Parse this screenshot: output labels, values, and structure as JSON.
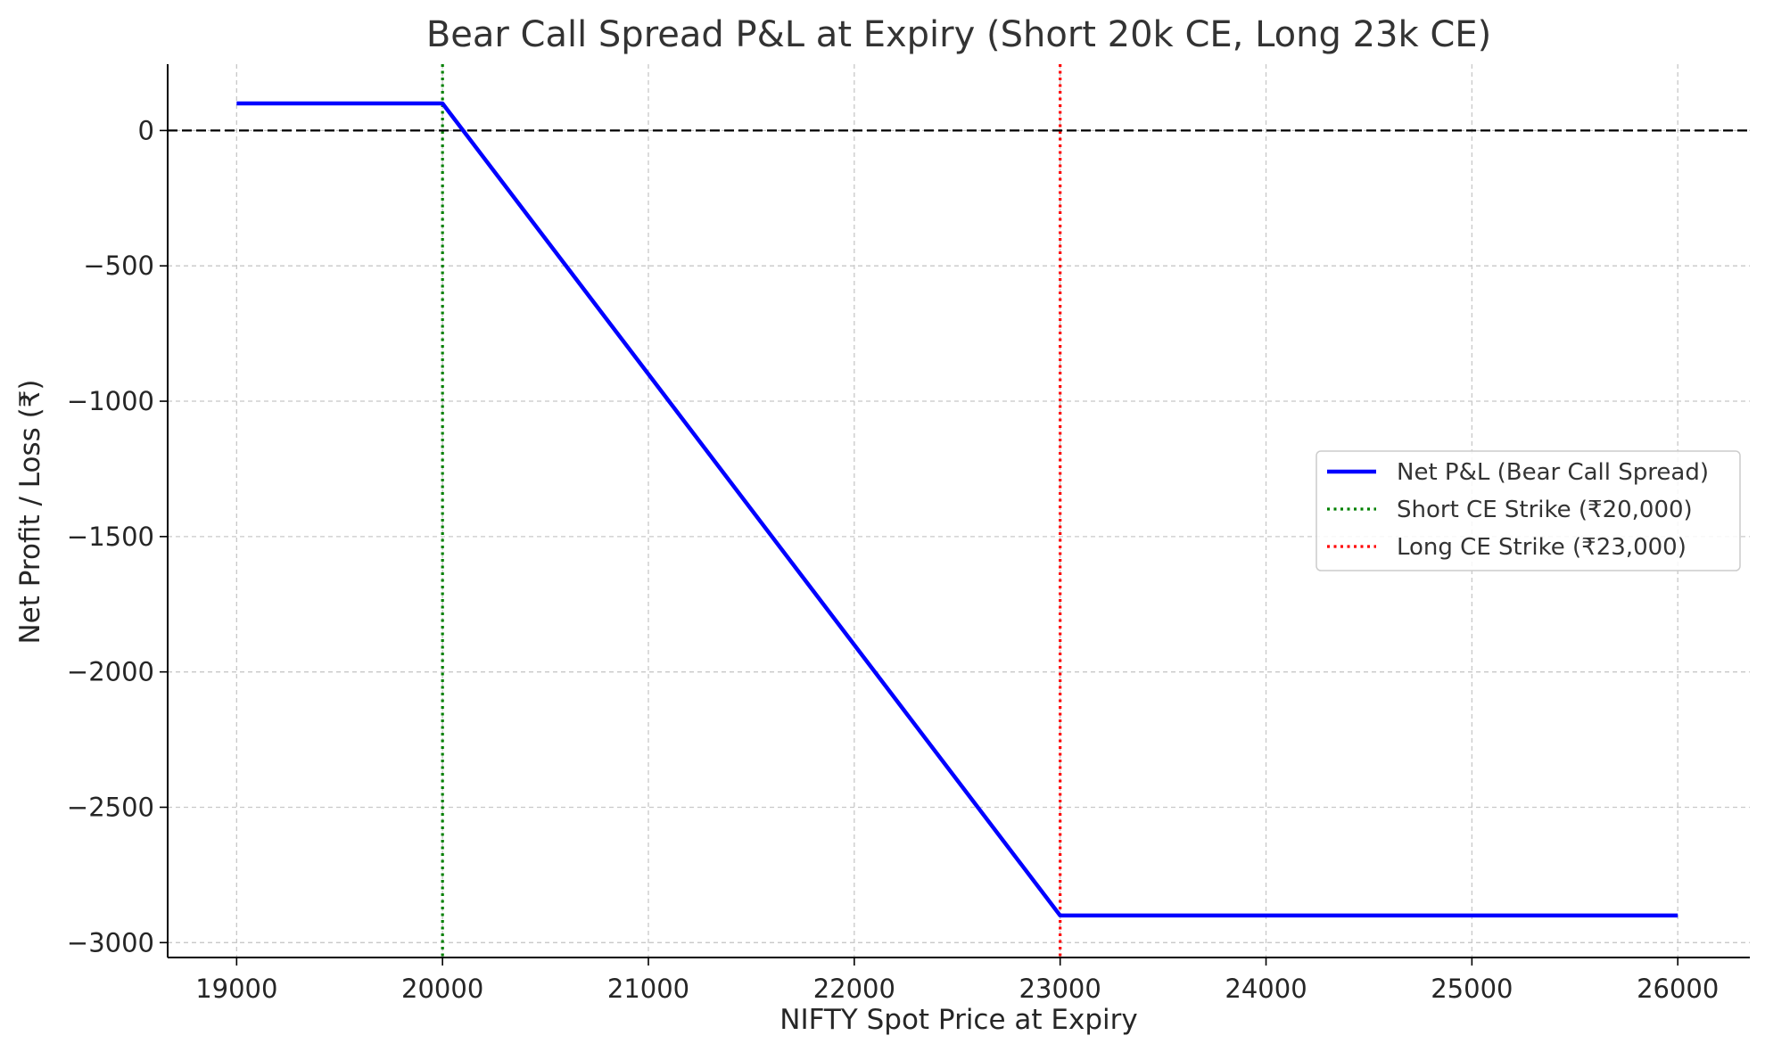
{
  "chart_data": {
    "type": "line",
    "title": "Bear Call Spread P&L at Expiry (Short 20k CE, Long 23k CE)",
    "xlabel": "NIFTY Spot Price at Expiry",
    "ylabel": "Net Profit / Loss (₹)",
    "xlim": [
      18665,
      26350
    ],
    "ylim": [
      -3055,
      245
    ],
    "xticks": [
      19000,
      20000,
      21000,
      22000,
      23000,
      24000,
      25000,
      26000
    ],
    "yticks": [
      0,
      -500,
      -1000,
      -1500,
      -2000,
      -2500,
      -3000
    ],
    "ytick_labels": [
      "0",
      "−500",
      "−1000",
      "−1500",
      "−2000",
      "−2500",
      "−3000"
    ],
    "grid": true,
    "series": [
      {
        "name": "Net P&L (Bear Call Spread)",
        "color": "#0000ff",
        "style": "solid",
        "x": [
          19000,
          20000,
          23000,
          26000
        ],
        "y": [
          100,
          100,
          -2900,
          -2900
        ]
      }
    ],
    "reference_lines": [
      {
        "name": "Short CE Strike (₹20,000)",
        "orientation": "vertical",
        "value": 20000,
        "color": "#008000",
        "style": "dotted"
      },
      {
        "name": "Long CE Strike (₹23,000)",
        "orientation": "vertical",
        "value": 23000,
        "color": "#ff0000",
        "style": "dotted"
      },
      {
        "name": "zero-line",
        "orientation": "horizontal",
        "value": 0,
        "color": "#000000",
        "style": "dashed"
      }
    ],
    "legend": {
      "placement": "center-right",
      "entries": [
        {
          "label": "Net P&L (Bear Call Spread)",
          "color": "#0000ff",
          "style": "solid"
        },
        {
          "label": "Short CE Strike (₹20,000)",
          "color": "#008000",
          "style": "dotted"
        },
        {
          "label": "Long CE Strike (₹23,000)",
          "color": "#ff0000",
          "style": "dotted"
        }
      ]
    }
  }
}
